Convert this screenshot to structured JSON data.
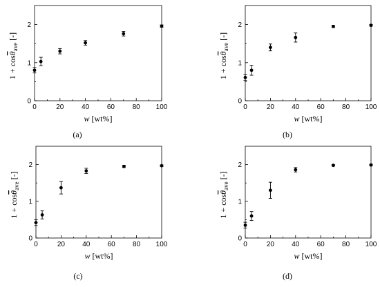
{
  "chart_data": [
    {
      "type": "scatter",
      "panel_label": "(a)",
      "panel_letter": "a",
      "ylabel_base": "1 + cos",
      "ylabel_symbol": "θ",
      "ylabel_sub": "ave",
      "ylabel_unit": "[-]",
      "xlabel_var": "w",
      "xlabel_unit": "[wt%]",
      "xlim": [
        0,
        100
      ],
      "ylim": [
        0,
        2.5
      ],
      "xticks": [
        "0",
        "20",
        "40",
        "60",
        "80",
        "100"
      ],
      "yticks": [
        "0",
        "1",
        "2"
      ],
      "x": [
        0,
        5,
        20,
        40,
        70,
        100
      ],
      "y": [
        0.8,
        1.03,
        1.3,
        1.52,
        1.76,
        1.96
      ],
      "yerr": [
        0.07,
        0.11,
        0.07,
        0.06,
        0.06,
        0.03
      ]
    },
    {
      "type": "scatter",
      "panel_label": "(b)",
      "panel_letter": "b",
      "ylabel_base": "1 + cos",
      "ylabel_symbol": "θ",
      "ylabel_sub": "ave",
      "ylabel_unit": "[-]",
      "xlabel_var": "w",
      "xlabel_unit": "[wt%]",
      "xlim": [
        0,
        100
      ],
      "ylim": [
        0,
        2.5
      ],
      "xticks": [
        "0",
        "20",
        "40",
        "60",
        "80",
        "100"
      ],
      "yticks": [
        "0",
        "1",
        "2"
      ],
      "x": [
        0,
        5,
        20,
        40,
        70,
        100
      ],
      "y": [
        0.61,
        0.8,
        1.4,
        1.66,
        1.95,
        1.98
      ],
      "yerr": [
        0.08,
        0.13,
        0.09,
        0.12,
        0.03,
        0.02
      ]
    },
    {
      "type": "scatter",
      "panel_label": "(c)",
      "panel_letter": "c",
      "ylabel_base": "1 + cos",
      "ylabel_symbol": "θ",
      "ylabel_sub": "ave",
      "ylabel_unit": "[-]",
      "xlabel_var": "w",
      "xlabel_unit": "[wt%]",
      "xlim": [
        0,
        100
      ],
      "ylim": [
        0,
        2.5
      ],
      "xticks": [
        "0",
        "20",
        "40",
        "60",
        "80",
        "100"
      ],
      "yticks": [
        "0",
        "1",
        "2"
      ],
      "x": [
        0,
        5,
        20,
        40,
        70,
        100
      ],
      "y": [
        0.42,
        0.63,
        1.37,
        1.83,
        1.95,
        1.97
      ],
      "yerr": [
        0.08,
        0.11,
        0.17,
        0.07,
        0.03,
        0.02
      ]
    },
    {
      "type": "scatter",
      "panel_label": "(d)",
      "panel_letter": "d",
      "ylabel_base": "1 + cos",
      "ylabel_symbol": "θ",
      "ylabel_sub": "ave",
      "ylabel_unit": "[-]",
      "xlabel_var": "w",
      "xlabel_unit": "[wt%]",
      "xlim": [
        0,
        100
      ],
      "ylim": [
        0,
        2.5
      ],
      "xticks": [
        "0",
        "20",
        "40",
        "60",
        "80",
        "100"
      ],
      "yticks": [
        "0",
        "1",
        "2"
      ],
      "x": [
        0,
        5,
        20,
        40,
        70,
        100
      ],
      "y": [
        0.35,
        0.6,
        1.3,
        1.86,
        1.98,
        1.99
      ],
      "yerr": [
        0.08,
        0.12,
        0.22,
        0.06,
        0.02,
        0.02
      ]
    }
  ]
}
